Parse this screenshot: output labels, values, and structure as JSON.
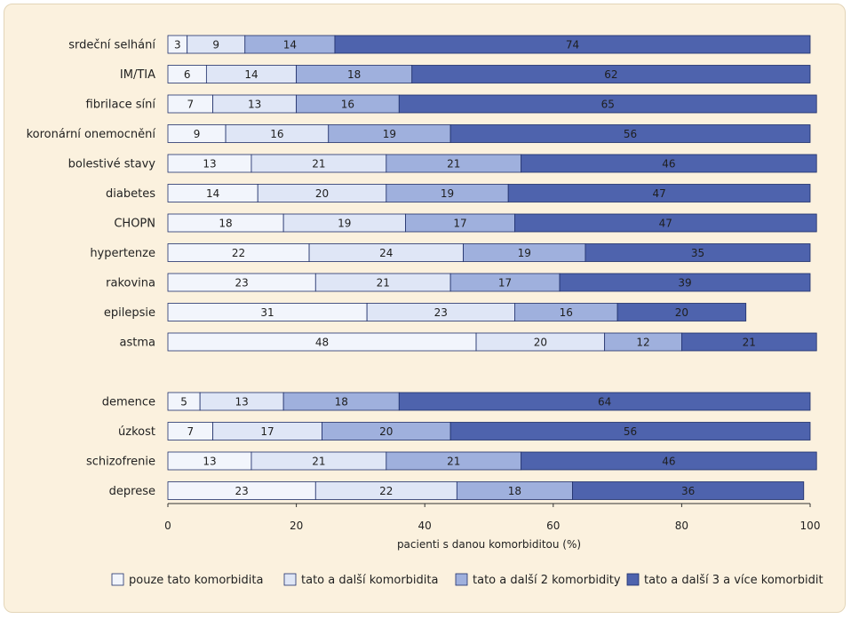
{
  "chart_data": {
    "type": "bar",
    "orientation": "horizontal",
    "stacked": true,
    "xlabel": "pacienti s danou komorbiditou (%)",
    "xlim": [
      0,
      100
    ],
    "x_ticks": [
      "0",
      "20",
      "40",
      "60",
      "80",
      "100"
    ],
    "groups": [
      [
        "srdeční selhání",
        "IM/TIA",
        "fibrilace síní",
        "koronární onemocnění",
        "bolestivé stavy",
        "diabetes",
        "CHOPN",
        "hypertenze",
        "rakovina",
        "epilepsie",
        "astma"
      ],
      [
        "demence",
        "úzkost",
        "schizofrenie",
        "deprese"
      ]
    ],
    "categories": [
      "srdeční selhání",
      "IM/TIA",
      "fibrilace síní",
      "koronární onemocnění",
      "bolestivé stavy",
      "diabetes",
      "CHOPN",
      "hypertenze",
      "rakovina",
      "epilepsie",
      "astma",
      "demence",
      "úzkost",
      "schizofrenie",
      "deprese"
    ],
    "series": [
      {
        "name": "pouze tato komorbidita",
        "color": "#f2f5fc",
        "values": [
          3,
          6,
          7,
          9,
          13,
          14,
          18,
          22,
          23,
          31,
          48,
          5,
          7,
          13,
          23
        ]
      },
      {
        "name": "tato a další komorbidita",
        "color": "#dfe6f6",
        "values": [
          9,
          14,
          13,
          16,
          21,
          20,
          19,
          24,
          21,
          23,
          20,
          13,
          17,
          21,
          22
        ]
      },
      {
        "name": "tato a další 2 komorbidity",
        "color": "#9fb0dd",
        "values": [
          14,
          18,
          16,
          19,
          21,
          19,
          17,
          19,
          17,
          16,
          12,
          18,
          20,
          21,
          18
        ]
      },
      {
        "name": "tato a další 3 a více komorbidit",
        "color": "#4e63ad",
        "values": [
          74,
          62,
          65,
          56,
          46,
          47,
          47,
          35,
          39,
          20,
          21,
          64,
          56,
          46,
          36
        ]
      }
    ],
    "grid": false,
    "legend_position": "bottom"
  }
}
